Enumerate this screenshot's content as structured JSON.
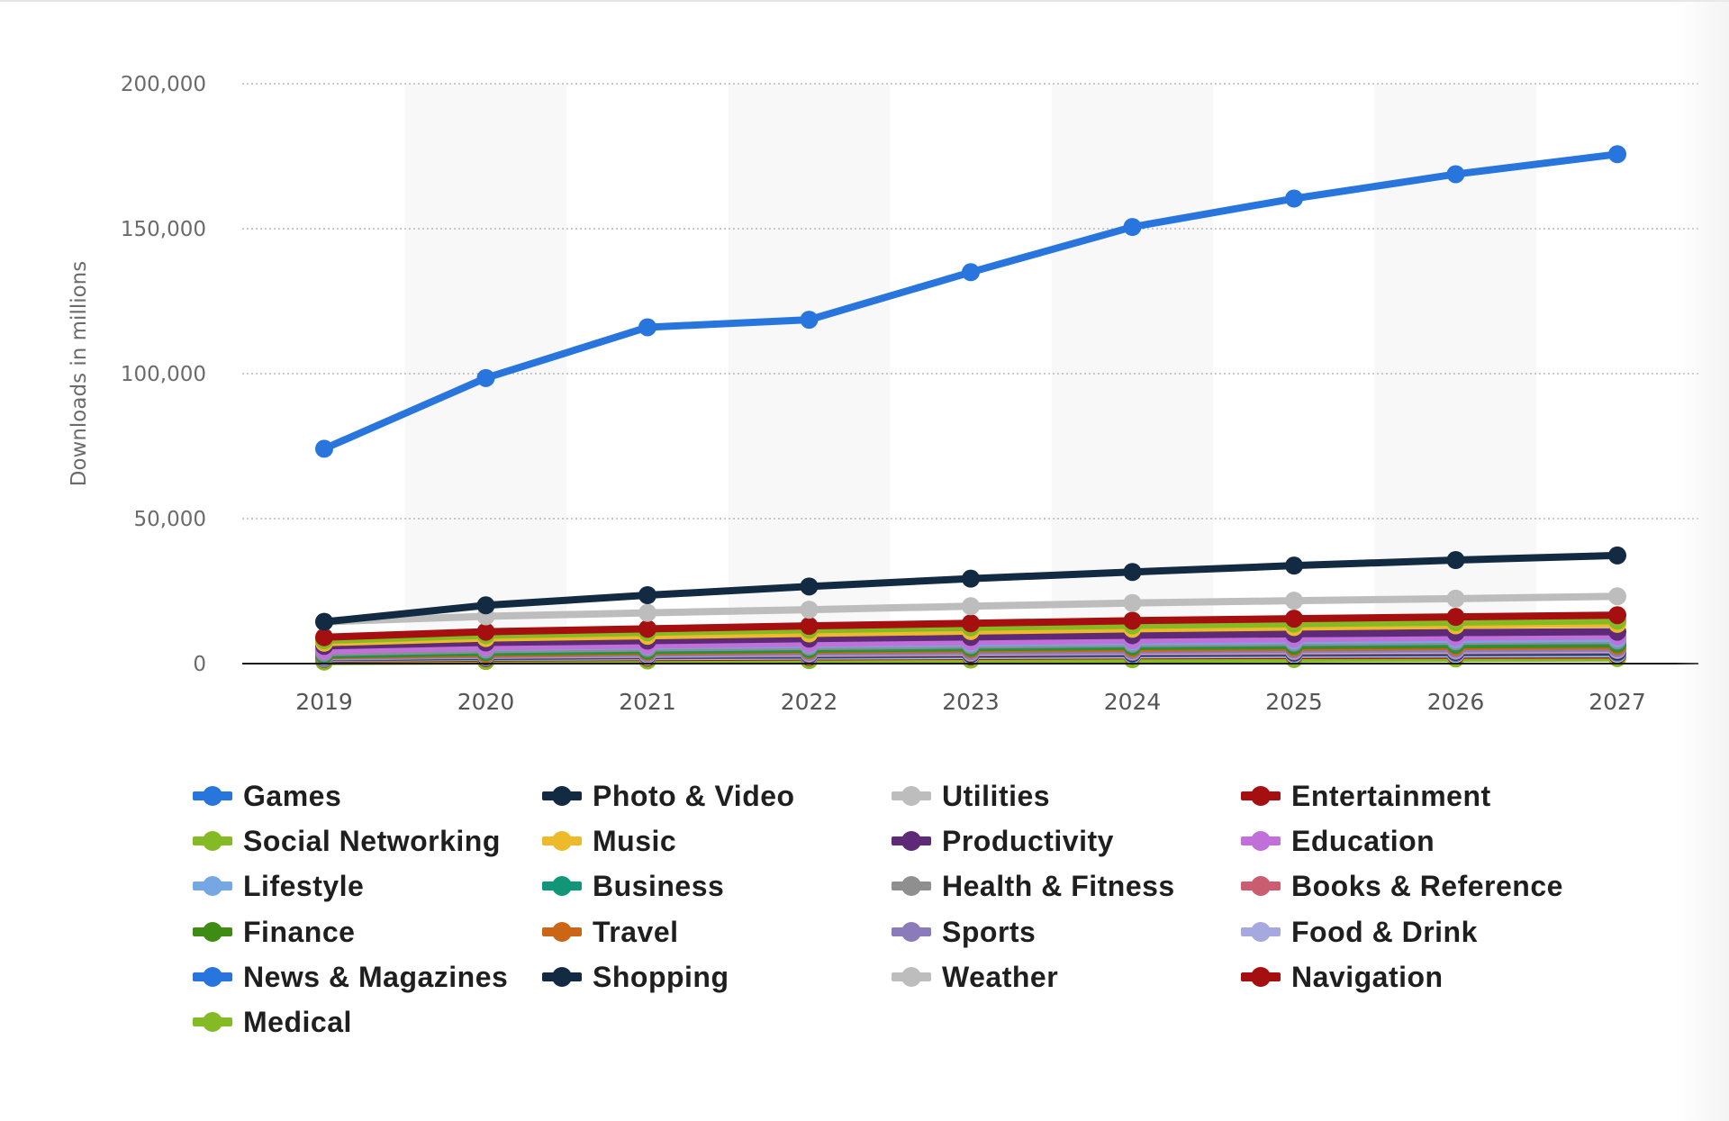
{
  "chart_data": {
    "type": "line",
    "title": "",
    "xlabel": "",
    "ylabel": "Downloads in millions",
    "ylim": [
      0,
      200000
    ],
    "y_ticks": [
      "0",
      "50,000",
      "100,000",
      "150,000",
      "200,000"
    ],
    "y_tick_values": [
      0,
      50000,
      100000,
      150000,
      200000
    ],
    "grid": true,
    "legend_position": "bottom",
    "x": [
      "2019",
      "2020",
      "2021",
      "2022",
      "2023",
      "2024",
      "2025",
      "2026",
      "2027"
    ],
    "series": [
      {
        "name": "Games",
        "color": "#2876dd",
        "values": [
          74100,
          98500,
          116000,
          118600,
          135000,
          150600,
          160400,
          168800,
          175700
        ]
      },
      {
        "name": "Photo & Video",
        "color": "#132a43",
        "values": [
          14400,
          20100,
          23600,
          26600,
          29300,
          31600,
          33800,
          35700,
          37300
        ]
      },
      {
        "name": "Utilities",
        "color": "#bdbdbd",
        "values": [
          14400,
          16300,
          17500,
          18600,
          19800,
          20900,
          21700,
          22400,
          23200
        ]
      },
      {
        "name": "Entertainment",
        "color": "#a50f0f",
        "values": [
          9100,
          11000,
          12000,
          13000,
          13900,
          14800,
          15500,
          16100,
          16700
        ]
      },
      {
        "name": "Social Networking",
        "color": "#84bb25",
        "values": [
          8000,
          9800,
          10800,
          11700,
          12500,
          13200,
          13800,
          14300,
          14800
        ]
      },
      {
        "name": "Music",
        "color": "#efba2a",
        "values": [
          7200,
          8800,
          9600,
          10400,
          11200,
          12000,
          12600,
          13200,
          13700
        ]
      },
      {
        "name": "Productivity",
        "color": "#5e2a78",
        "values": [
          6100,
          7300,
          7900,
          8600,
          9200,
          9800,
          10300,
          10700,
          11000
        ]
      },
      {
        "name": "Education",
        "color": "#c070d8",
        "values": [
          4500,
          5800,
          6400,
          7000,
          7600,
          8100,
          8600,
          9100,
          9500
        ]
      },
      {
        "name": "Lifestyle",
        "color": "#76a7e5",
        "values": [
          4900,
          5600,
          6100,
          6600,
          7100,
          7600,
          8000,
          8400,
          8700
        ]
      },
      {
        "name": "Health & Fitness",
        "color": "#8f8f8f",
        "values": [
          3800,
          4800,
          5400,
          5900,
          6400,
          6900,
          7300,
          7700,
          8000
        ]
      },
      {
        "name": "Business",
        "color": "#119677",
        "values": [
          3400,
          4400,
          5000,
          5500,
          6000,
          6500,
          6900,
          7300,
          7600
        ]
      },
      {
        "name": "Finance",
        "color": "#3e8c14",
        "values": [
          3000,
          3900,
          4500,
          5000,
          5500,
          5900,
          6200,
          6500,
          6800
        ]
      },
      {
        "name": "Travel",
        "color": "#cc6617",
        "values": [
          2800,
          3400,
          4100,
          4600,
          5000,
          5300,
          5600,
          5900,
          6100
        ]
      },
      {
        "name": "Sports",
        "color": "#8c7bba",
        "values": [
          2600,
          3100,
          3600,
          4000,
          4300,
          4600,
          4900,
          5100,
          5300
        ]
      },
      {
        "name": "Food & Drink",
        "color": "#a6a9de",
        "values": [
          2400,
          2900,
          3300,
          3700,
          4000,
          4300,
          4500,
          4700,
          4900
        ]
      },
      {
        "name": "Books & Reference",
        "color": "#cc5c70",
        "values": [
          2300,
          2800,
          3100,
          3400,
          3700,
          4000,
          4200,
          4400,
          4600
        ]
      },
      {
        "name": "Shopping",
        "color": "#132a43",
        "values": [
          2200,
          2600,
          2900,
          3200,
          3400,
          3700,
          3900,
          4100,
          4200
        ]
      },
      {
        "name": "News & Magazines",
        "color": "#2876dd",
        "values": [
          2000,
          2400,
          2700,
          2900,
          3200,
          3400,
          3600,
          3700,
          3800
        ]
      },
      {
        "name": "Weather",
        "color": "#bdbdbd",
        "values": [
          1800,
          2200,
          2400,
          2600,
          2800,
          3000,
          3200,
          3300,
          3400
        ]
      },
      {
        "name": "Navigation",
        "color": "#a50f0f",
        "values": [
          1600,
          1900,
          2100,
          2300,
          2500,
          2700,
          2800,
          2900,
          3000
        ]
      },
      {
        "name": "Medical",
        "color": "#84bb25",
        "values": [
          700,
          900,
          1100,
          1200,
          1400,
          1500,
          1600,
          1800,
          1900
        ]
      }
    ]
  },
  "legend": {
    "columns": 4,
    "items": [
      {
        "label": "Games",
        "color": "#2876dd"
      },
      {
        "label": "Photo & Video",
        "color": "#132a43"
      },
      {
        "label": "Utilities",
        "color": "#bdbdbd"
      },
      {
        "label": "Entertainment",
        "color": "#a50f0f"
      },
      {
        "label": "Social Networking",
        "color": "#84bb25"
      },
      {
        "label": "Music",
        "color": "#efba2a"
      },
      {
        "label": "Productivity",
        "color": "#5e2a78"
      },
      {
        "label": "Education",
        "color": "#c070d8"
      },
      {
        "label": "Lifestyle",
        "color": "#76a7e5"
      },
      {
        "label": "Business",
        "color": "#119677"
      },
      {
        "label": "Health & Fitness",
        "color": "#8f8f8f"
      },
      {
        "label": "Books & Reference",
        "color": "#cc5c70"
      },
      {
        "label": "Finance",
        "color": "#3e8c14"
      },
      {
        "label": "Travel",
        "color": "#cc6617"
      },
      {
        "label": "Sports",
        "color": "#8c7bba"
      },
      {
        "label": "Food & Drink",
        "color": "#a6a9de"
      },
      {
        "label": "News & Magazines",
        "color": "#2876dd"
      },
      {
        "label": "Shopping",
        "color": "#132a43"
      },
      {
        "label": "Weather",
        "color": "#bdbdbd"
      },
      {
        "label": "Navigation",
        "color": "#a50f0f"
      },
      {
        "label": "Medical",
        "color": "#84bb25"
      }
    ]
  }
}
